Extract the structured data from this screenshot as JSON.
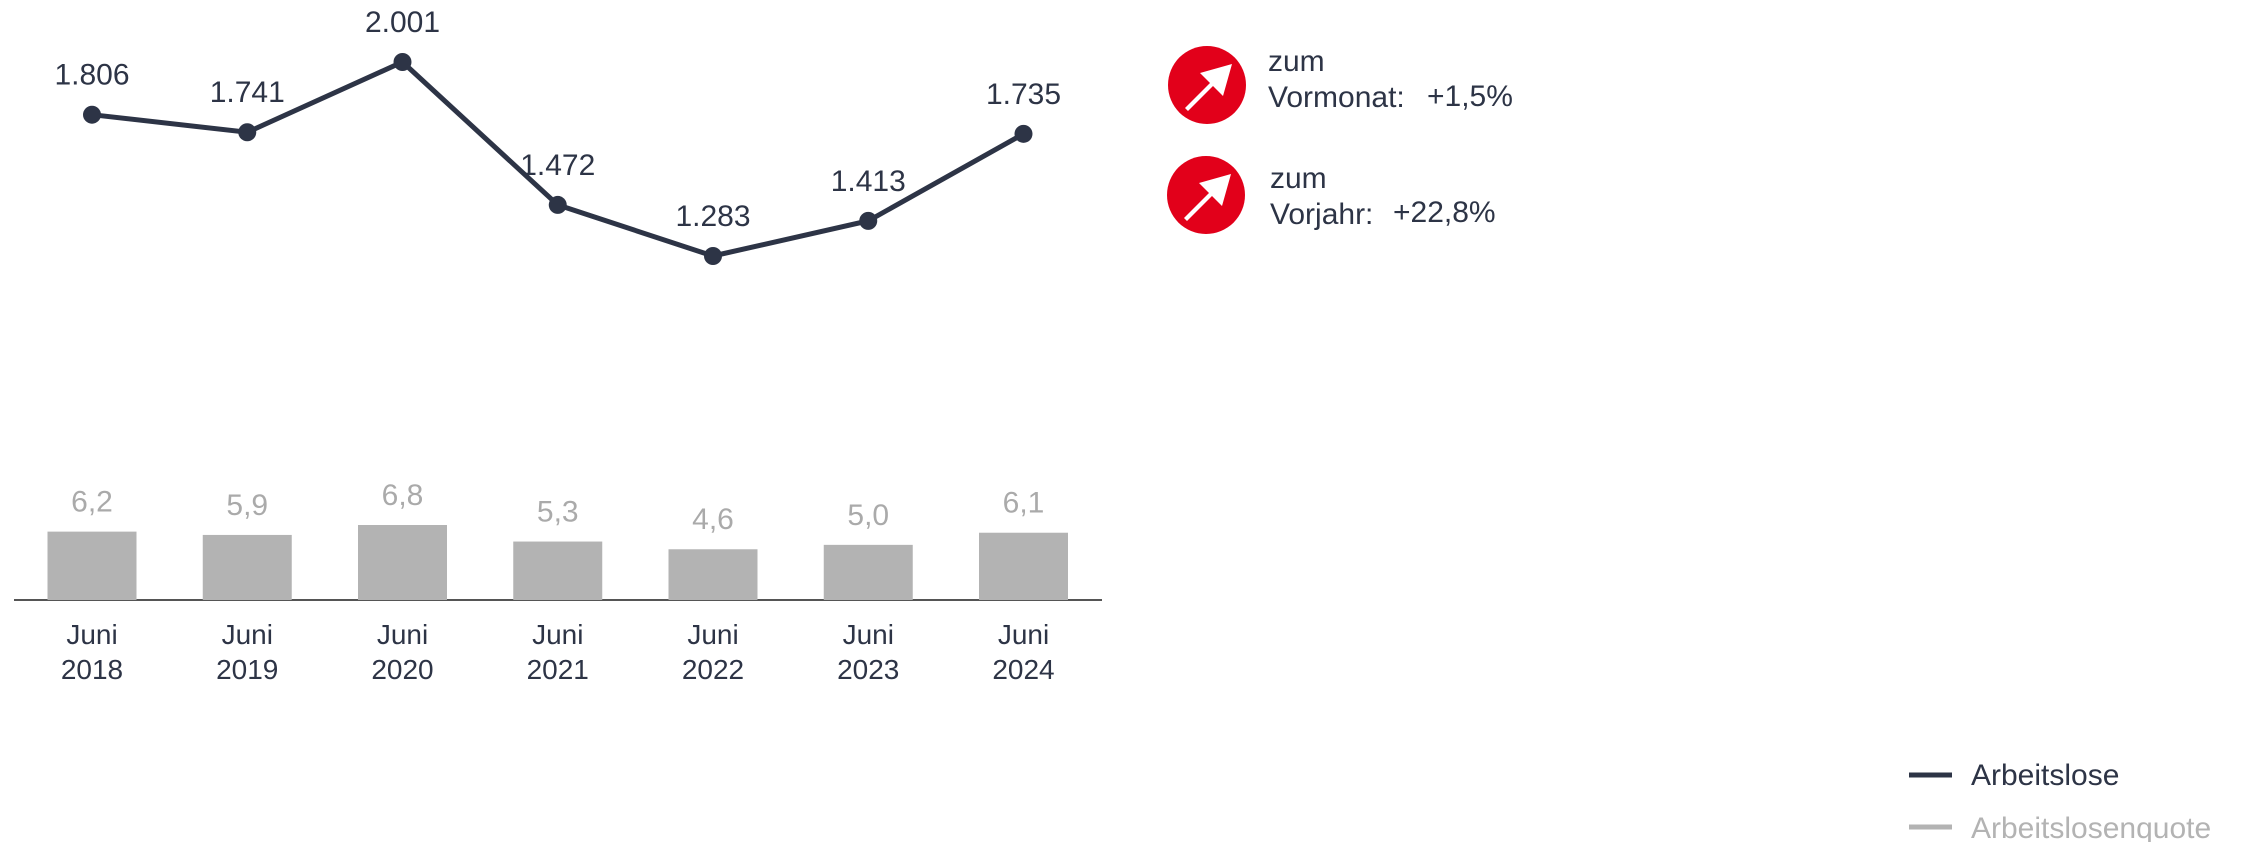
{
  "chart_data": [
    {
      "type": "line",
      "categories": [
        "Juni 2018",
        "Juni 2019",
        "Juni 2020",
        "Juni 2021",
        "Juni 2022",
        "Juni 2023",
        "Juni 2024"
      ],
      "series": [
        {
          "name": "Arbeitslose",
          "color": "#2d3446",
          "values": [
            1806,
            1741,
            2001,
            1472,
            1283,
            1413,
            1735
          ],
          "value_labels": [
            "1.806",
            "1.741",
            "2.001",
            "1.472",
            "1.283",
            "1.413",
            "1.735"
          ]
        }
      ]
    },
    {
      "type": "bar",
      "categories": [
        "Juni 2018",
        "Juni 2019",
        "Juni 2020",
        "Juni 2021",
        "Juni 2022",
        "Juni 2023",
        "Juni 2024"
      ],
      "series": [
        {
          "name": "Arbeitslosenquote",
          "color": "#b3b3b3",
          "values": [
            6.2,
            5.9,
            6.8,
            5.3,
            4.6,
            5.0,
            6.1
          ],
          "value_labels": [
            "6,2",
            "5,9",
            "6,8",
            "5,3",
            "4,6",
            "5,0",
            "6,1"
          ]
        }
      ]
    }
  ],
  "indicators": [
    {
      "text": "zum",
      "period": "Vormonat:",
      "change": "+1,5%"
    },
    {
      "text": "zum",
      "period": "Vorjahr:",
      "change": "+22,8%"
    }
  ]
}
